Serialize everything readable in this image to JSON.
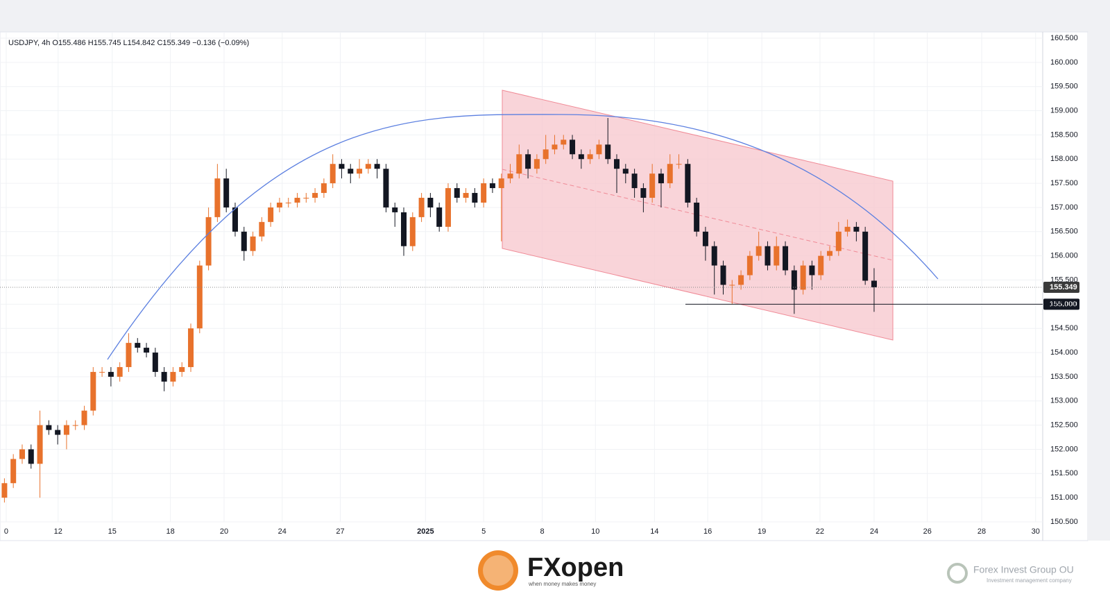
{
  "chart_data": {
    "type": "candlestick",
    "header": "USDJPY, 4h  O155.486  H155.745  L154.842  C155.349  −0.136 (−0.09%)",
    "up_color": "#e8722c",
    "down_color": "#131722",
    "grid": true,
    "xlim": [
      0,
      235
    ],
    "ylim": [
      150.5,
      160.5
    ],
    "x": [
      1,
      3,
      5,
      7,
      9,
      11,
      13,
      15,
      17,
      19,
      21,
      23,
      25,
      27,
      29,
      31,
      33,
      35,
      37,
      39,
      41,
      43,
      45,
      47,
      49,
      51,
      53,
      55,
      57,
      59,
      61,
      63,
      65,
      67,
      69,
      71,
      73,
      75,
      77,
      79,
      81,
      83,
      85,
      87,
      89,
      91,
      93,
      95,
      97,
      99,
      101,
      103,
      105,
      107,
      109,
      111,
      113,
      115,
      117,
      119,
      121,
      123,
      125,
      127,
      129,
      131,
      133,
      135,
      137,
      139,
      141,
      143,
      145,
      147,
      149,
      151,
      153,
      155,
      157,
      159,
      161,
      163,
      165,
      167,
      169,
      171,
      173,
      175,
      177,
      179,
      181,
      183,
      185,
      187,
      189,
      191,
      193,
      195,
      197
    ],
    "open": [
      151.0,
      151.3,
      151.8,
      152.0,
      151.7,
      152.5,
      152.4,
      152.3,
      152.5,
      152.5,
      152.8,
      153.6,
      153.6,
      153.5,
      153.7,
      154.2,
      154.1,
      154.0,
      153.6,
      153.4,
      153.6,
      153.7,
      154.5,
      155.8,
      156.8,
      157.6,
      157.0,
      156.5,
      156.1,
      156.4,
      156.7,
      157.0,
      157.1,
      157.1,
      157.2,
      157.2,
      157.3,
      157.5,
      157.9,
      157.8,
      157.7,
      157.8,
      157.9,
      157.8,
      157.0,
      156.9,
      156.2,
      156.8,
      157.2,
      157.0,
      156.6,
      157.4,
      157.2,
      157.3,
      157.1,
      157.5,
      157.4,
      157.6,
      157.7,
      158.1,
      157.8,
      158.0,
      158.2,
      158.3,
      158.4,
      158.1,
      158.0,
      158.1,
      158.3,
      158.0,
      157.8,
      157.7,
      157.4,
      157.2,
      157.7,
      157.5,
      157.9,
      157.9,
      157.1,
      156.5,
      156.2,
      155.8,
      155.4,
      155.4,
      155.6,
      156.0,
      156.2,
      155.8,
      156.2,
      155.7,
      155.3,
      155.8,
      155.6,
      156.0,
      156.1,
      156.5,
      156.6,
      156.5,
      155.486
    ],
    "high": [
      151.4,
      151.9,
      152.1,
      152.1,
      152.8,
      152.6,
      152.5,
      152.6,
      152.6,
      152.9,
      153.7,
      153.7,
      153.7,
      153.8,
      154.4,
      154.3,
      154.2,
      154.1,
      153.7,
      153.7,
      153.8,
      154.6,
      155.9,
      157.0,
      157.9,
      157.8,
      157.1,
      156.6,
      156.5,
      156.8,
      157.1,
      157.2,
      157.2,
      157.3,
      157.3,
      157.4,
      157.6,
      158.1,
      158.0,
      157.9,
      158.0,
      158.0,
      158.0,
      157.9,
      157.1,
      157.0,
      156.9,
      157.3,
      157.3,
      157.1,
      157.5,
      157.5,
      157.4,
      157.4,
      157.6,
      157.6,
      157.7,
      157.9,
      158.3,
      158.2,
      158.1,
      158.5,
      158.5,
      158.5,
      158.5,
      158.2,
      158.2,
      158.4,
      158.85,
      158.1,
      157.9,
      157.8,
      157.5,
      157.9,
      157.8,
      158.1,
      158.1,
      158.0,
      157.2,
      156.6,
      156.3,
      155.9,
      155.5,
      155.7,
      156.1,
      156.5,
      156.3,
      156.4,
      156.3,
      155.8,
      155.9,
      155.9,
      156.1,
      156.2,
      156.7,
      156.75,
      156.7,
      156.6,
      155.745
    ],
    "low": [
      150.9,
      151.2,
      151.7,
      151.6,
      151.0,
      152.3,
      152.1,
      152.0,
      152.4,
      152.4,
      152.7,
      153.5,
      153.3,
      153.4,
      153.6,
      154.0,
      153.9,
      153.5,
      153.2,
      153.3,
      153.5,
      153.6,
      154.4,
      155.7,
      156.7,
      156.9,
      156.4,
      155.9,
      156.0,
      156.3,
      156.6,
      156.9,
      157.0,
      157.0,
      157.1,
      157.1,
      157.2,
      157.4,
      157.6,
      157.5,
      157.6,
      157.7,
      157.6,
      156.9,
      156.6,
      156.0,
      156.1,
      156.7,
      156.8,
      156.5,
      156.5,
      157.1,
      157.1,
      157.0,
      157.0,
      157.3,
      156.3,
      157.5,
      157.6,
      157.6,
      157.7,
      157.9,
      158.1,
      158.2,
      158.0,
      157.8,
      157.9,
      158.0,
      157.9,
      157.3,
      157.5,
      157.2,
      156.9,
      157.1,
      157.0,
      157.4,
      157.8,
      157.0,
      156.4,
      155.9,
      155.2,
      155.2,
      155.0,
      155.3,
      155.5,
      155.9,
      155.7,
      155.7,
      155.6,
      154.8,
      155.2,
      155.3,
      155.5,
      155.9,
      156.0,
      156.4,
      156.3,
      155.4,
      154.842
    ],
    "close": [
      151.3,
      151.8,
      152.0,
      151.7,
      152.5,
      152.4,
      152.3,
      152.5,
      152.5,
      152.8,
      153.6,
      153.6,
      153.5,
      153.7,
      154.2,
      154.1,
      154.0,
      153.6,
      153.4,
      153.6,
      153.7,
      154.5,
      155.8,
      156.8,
      157.6,
      157.0,
      156.5,
      156.1,
      156.4,
      156.7,
      157.0,
      157.1,
      157.1,
      157.2,
      157.2,
      157.3,
      157.5,
      157.9,
      157.8,
      157.7,
      157.8,
      157.9,
      157.8,
      157.0,
      156.9,
      156.2,
      156.8,
      157.2,
      157.0,
      156.6,
      157.4,
      157.2,
      157.3,
      157.1,
      157.5,
      157.4,
      157.6,
      157.7,
      158.1,
      157.8,
      158.0,
      158.2,
      158.3,
      158.4,
      158.1,
      158.0,
      158.1,
      158.3,
      158.0,
      157.8,
      157.7,
      157.4,
      157.2,
      157.7,
      157.5,
      157.9,
      157.9,
      157.1,
      156.5,
      156.2,
      155.8,
      155.4,
      155.4,
      155.6,
      156.0,
      156.2,
      155.8,
      156.2,
      155.7,
      155.3,
      155.8,
      155.6,
      156.0,
      156.1,
      156.5,
      156.6,
      156.5,
      155.486,
      155.349
    ],
    "xticks": [
      {
        "value": 1.4,
        "label": "0"
      },
      {
        "value": 13.1,
        "label": "12"
      },
      {
        "value": 25.3,
        "label": "15"
      },
      {
        "value": 38.4,
        "label": "18"
      },
      {
        "value": 50.5,
        "label": "20"
      },
      {
        "value": 63.6,
        "label": "24"
      },
      {
        "value": 76.7,
        "label": "27"
      },
      {
        "value": 95.9,
        "label": "2025"
      },
      {
        "value": 109,
        "label": "5"
      },
      {
        "value": 122.2,
        "label": "8"
      },
      {
        "value": 134.2,
        "label": "10"
      },
      {
        "value": 147.5,
        "label": "14"
      },
      {
        "value": 159.5,
        "label": "16"
      },
      {
        "value": 171.7,
        "label": "19"
      },
      {
        "value": 184.8,
        "label": "22"
      },
      {
        "value": 197,
        "label": "24"
      },
      {
        "value": 209,
        "label": "26"
      },
      {
        "value": 221.25,
        "label": "28"
      },
      {
        "value": 233.4,
        "label": "30"
      }
    ],
    "yticks": [
      {
        "value": 150.5,
        "label": "150.500"
      },
      {
        "value": 151,
        "label": "151.000"
      },
      {
        "value": 151.5,
        "label": "151.500"
      },
      {
        "value": 152,
        "label": "152.000"
      },
      {
        "value": 152.5,
        "label": "152.500"
      },
      {
        "value": 153,
        "label": "153.000"
      },
      {
        "value": 153.5,
        "label": "153.500"
      },
      {
        "value": 154,
        "label": "154.000"
      },
      {
        "value": 154.5,
        "label": "154.500"
      },
      {
        "value": 155,
        "label": "155.000"
      },
      {
        "value": 155.5,
        "label": "155.500"
      },
      {
        "value": 156,
        "label": "156.000"
      },
      {
        "value": 156.5,
        "label": "156.500"
      },
      {
        "value": 157,
        "label": "157.000"
      },
      {
        "value": 157.5,
        "label": "157.500"
      },
      {
        "value": 158,
        "label": "158.000"
      },
      {
        "value": 158.5,
        "label": "158.500"
      },
      {
        "value": 159,
        "label": "159.000"
      },
      {
        "value": 159.5,
        "label": "159.500"
      },
      {
        "value": 160,
        "label": "160.000"
      },
      {
        "value": 160.5,
        "label": "160.500"
      }
    ],
    "last_price": {
      "value": 155.349,
      "label": "155.349"
    },
    "hline": {
      "value": 155,
      "label": "155.000"
    }
  },
  "branding": {
    "logo": "FXopen",
    "slogan": "when money makes money",
    "company": "Forex Invest Group OU",
    "company_tagline": "Investment management company"
  }
}
